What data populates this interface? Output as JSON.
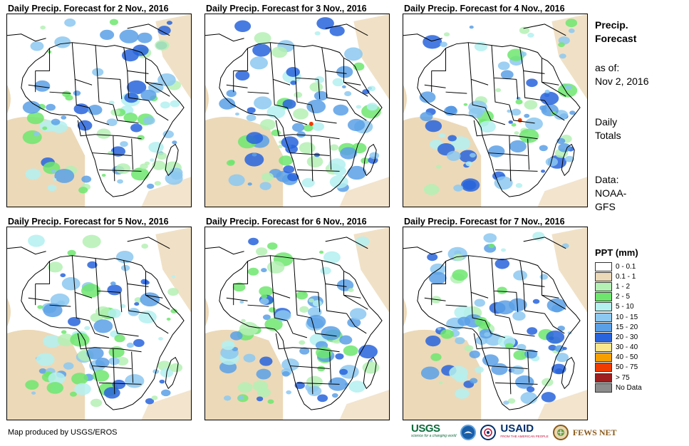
{
  "panels": [
    {
      "title": "Daily Precip. Forecast for 2 Nov., 2016"
    },
    {
      "title": "Daily Precip. Forecast for 3 Nov., 2016"
    },
    {
      "title": "Daily Precip. Forecast for 4 Nov., 2016"
    },
    {
      "title": "Daily Precip. Forecast for 5 Nov., 2016"
    },
    {
      "title": "Daily Precip. Forecast for 6 Nov., 2016"
    },
    {
      "title": "Daily Precip. Forecast for 7 Nov., 2016"
    }
  ],
  "sidebar": {
    "heading_line1": "Precip.",
    "heading_line2": "Forecast",
    "asof_line1": "as of:",
    "asof_line2": "Nov 2, 2016",
    "totals_line1": "Daily",
    "totals_line2": "Totals",
    "source_line1": "Data:",
    "source_line2": "NOAA-",
    "source_line3": "GFS"
  },
  "legend": {
    "title": "PPT (mm)",
    "items": [
      {
        "label": "0 - 0.1",
        "color": "#ffffff"
      },
      {
        "label": "0.1 - 1",
        "color": "#ecd9b8"
      },
      {
        "label": "1 - 2",
        "color": "#b4f0b4"
      },
      {
        "label": "2 - 5",
        "color": "#6ee66e"
      },
      {
        "label": "5 - 10",
        "color": "#b4f0f0"
      },
      {
        "label": "10 - 15",
        "color": "#8cc8f0"
      },
      {
        "label": "15 - 20",
        "color": "#5aa0e6"
      },
      {
        "label": "20 - 30",
        "color": "#2864dc"
      },
      {
        "label": "30 - 40",
        "color": "#fae68c"
      },
      {
        "label": "40 - 50",
        "color": "#f5a000"
      },
      {
        "label": "50 - 75",
        "color": "#f03c00"
      },
      {
        "label": "> 75",
        "color": "#a01e1e"
      },
      {
        "label": "No Data",
        "color": "#8c8c8c"
      }
    ]
  },
  "credit": "Map produced by USGS/EROS",
  "logos": {
    "usgs": "USGS",
    "usgs_tagline": "science for a changing world",
    "usaid": "USAID",
    "usaid_tagline": "FROM THE AMERICAN PEOPLE",
    "fewsnet": "FEWS NET"
  }
}
